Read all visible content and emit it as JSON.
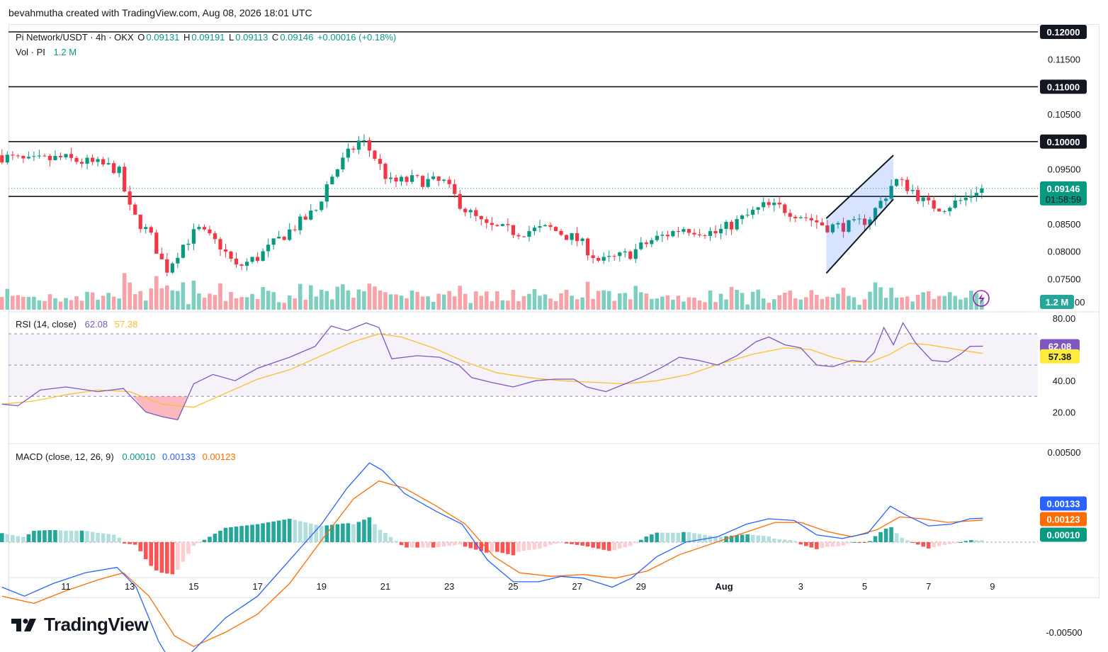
{
  "header": {
    "caption": "bevahmutha created with TradingView.com, Aug 08, 2026 18:01 UTC"
  },
  "legend": {
    "symbol": "Pi Network/USDT · 4h · OKX",
    "o_label": "O",
    "o_value": "0.09131",
    "h_label": "H",
    "h_value": "0.09191",
    "l_label": "L",
    "l_value": "0.09113",
    "c_label": "C",
    "c_value": "0.09146",
    "change": "+0.00016 (+0.18%)",
    "vol_label": "Vol · PI",
    "vol_value": "1.2 M"
  },
  "rsi_legend": {
    "label": "RSI (14, close)",
    "rsi": "62.08",
    "ma": "57.38"
  },
  "macd_legend": {
    "label": "MACD (close, 12, 26, 9)",
    "hist": "0.00010",
    "macd": "0.00133",
    "signal": "0.00123"
  },
  "brand": {
    "name": "TradingView"
  },
  "colors": {
    "up": "#089981",
    "down": "#f23645",
    "vol_up": "#7fcfc0",
    "vol_down": "#f7a1a8",
    "rsi": "#7e57c2",
    "rsi_ma": "#fbc02d",
    "macd": "#2962ff",
    "signal": "#ff6d00",
    "channel": "#2962ff"
  },
  "chart_data": [
    {
      "type": "candlestick",
      "title": "Pi Network/USDT · 4h · OKX",
      "ylim": [
        0.0715,
        0.1225
      ],
      "y_ticks": [
        "0.12000",
        "0.11500",
        "0.11000",
        "0.10500",
        "0.10000",
        "0.09500",
        "0.09146",
        "0.09000",
        "0.08500",
        "0.08000",
        "0.07500"
      ],
      "x_ticks": [
        "11",
        "13",
        "15",
        "17",
        "19",
        "21",
        "23",
        "25",
        "27",
        "29",
        "Aug",
        "3",
        "5",
        "7",
        "9"
      ],
      "last_price": "0.09146",
      "countdown": "01:58:59",
      "volume_badge": "1.2 M",
      "horizontal_levels": [
        "0.12000",
        "0.11000",
        "0.10000",
        "0.09000"
      ],
      "ohlc_last": {
        "open": 0.09131,
        "high": 0.09191,
        "low": 0.09113,
        "close": 0.09146
      },
      "path_keypoints": [
        {
          "day": 9.0,
          "price": 0.0975
        },
        {
          "day": 10.0,
          "price": 0.0963
        },
        {
          "day": 11.0,
          "price": 0.097
        },
        {
          "day": 12.3,
          "price": 0.0957
        },
        {
          "day": 12.8,
          "price": 0.095
        },
        {
          "day": 13.2,
          "price": 0.087
        },
        {
          "day": 13.8,
          "price": 0.083
        },
        {
          "day": 14.3,
          "price": 0.0765
        },
        {
          "day": 14.8,
          "price": 0.081
        },
        {
          "day": 15.3,
          "price": 0.084
        },
        {
          "day": 16.0,
          "price": 0.081
        },
        {
          "day": 16.5,
          "price": 0.077
        },
        {
          "day": 17.2,
          "price": 0.079
        },
        {
          "day": 18.0,
          "price": 0.083
        },
        {
          "day": 19.0,
          "price": 0.0875
        },
        {
          "day": 19.4,
          "price": 0.093
        },
        {
          "day": 19.9,
          "price": 0.097
        },
        {
          "day": 20.4,
          "price": 0.1005
        },
        {
          "day": 20.8,
          "price": 0.0975
        },
        {
          "day": 21.3,
          "price": 0.0925
        },
        {
          "day": 22.0,
          "price": 0.093
        },
        {
          "day": 23.0,
          "price": 0.0925
        },
        {
          "day": 23.6,
          "price": 0.088
        },
        {
          "day": 24.3,
          "price": 0.0845
        },
        {
          "day": 25.3,
          "price": 0.0835
        },
        {
          "day": 26.3,
          "price": 0.0842
        },
        {
          "day": 27.2,
          "price": 0.082
        },
        {
          "day": 27.9,
          "price": 0.078
        },
        {
          "day": 28.8,
          "price": 0.0795
        },
        {
          "day": 29.5,
          "price": 0.082
        },
        {
          "day": 30.5,
          "price": 0.0843
        },
        {
          "day": 31.5,
          "price": 0.0833
        },
        {
          "day": 32.3,
          "price": 0.0858
        },
        {
          "day": 33.0,
          "price": 0.0882
        },
        {
          "day": 33.5,
          "price": 0.088
        },
        {
          "day": 34.3,
          "price": 0.0863
        },
        {
          "day": 35.0,
          "price": 0.0845
        },
        {
          "day": 35.8,
          "price": 0.0847
        },
        {
          "day": 36.3,
          "price": 0.086
        },
        {
          "day": 36.8,
          "price": 0.09
        },
        {
          "day": 37.1,
          "price": 0.093
        },
        {
          "day": 37.6,
          "price": 0.0915
        },
        {
          "day": 38.1,
          "price": 0.0885
        },
        {
          "day": 38.6,
          "price": 0.088
        },
        {
          "day": 39.3,
          "price": 0.0895
        },
        {
          "day": 39.7,
          "price": 0.0914
        }
      ],
      "channel": {
        "upper": [
          {
            "day": 34.8,
            "price": 0.086
          },
          {
            "day": 36.9,
            "price": 0.0975
          }
        ],
        "lower": [
          {
            "day": 34.8,
            "price": 0.076
          },
          {
            "day": 36.9,
            "price": 0.0895
          }
        ]
      }
    },
    {
      "type": "line",
      "title": "RSI (14, close)",
      "ylim": [
        10,
        90
      ],
      "y_ticks": [
        "80.00",
        "40.00",
        "20.00"
      ],
      "bands": [
        70,
        50,
        30
      ],
      "series": [
        {
          "name": "RSI",
          "last": 62.08,
          "points": [
            [
              9.0,
              25
            ],
            [
              9.5,
              24
            ],
            [
              10.2,
              34
            ],
            [
              11.0,
              36
            ],
            [
              12.0,
              33
            ],
            [
              12.8,
              35
            ],
            [
              13.5,
              20
            ],
            [
              14.0,
              17
            ],
            [
              14.5,
              15
            ],
            [
              15.0,
              38
            ],
            [
              15.6,
              44
            ],
            [
              16.3,
              40
            ],
            [
              17.0,
              48
            ],
            [
              18.0,
              55
            ],
            [
              18.8,
              62
            ],
            [
              19.3,
              75
            ],
            [
              19.8,
              72
            ],
            [
              20.4,
              77
            ],
            [
              20.8,
              74
            ],
            [
              21.2,
              54
            ],
            [
              22.0,
              56
            ],
            [
              22.7,
              55
            ],
            [
              23.3,
              50
            ],
            [
              23.7,
              42
            ],
            [
              24.3,
              39
            ],
            [
              25.0,
              36
            ],
            [
              25.7,
              40
            ],
            [
              26.3,
              41
            ],
            [
              26.9,
              41
            ],
            [
              27.3,
              36
            ],
            [
              27.9,
              33
            ],
            [
              28.5,
              38
            ],
            [
              29.0,
              42
            ],
            [
              29.6,
              48
            ],
            [
              30.2,
              55
            ],
            [
              30.8,
              53
            ],
            [
              31.4,
              50
            ],
            [
              32.0,
              56
            ],
            [
              32.6,
              65
            ],
            [
              33.0,
              68
            ],
            [
              33.5,
              63
            ],
            [
              34.0,
              61
            ],
            [
              34.5,
              50
            ],
            [
              35.0,
              49
            ],
            [
              35.6,
              53
            ],
            [
              36.0,
              52
            ],
            [
              36.3,
              58
            ],
            [
              36.6,
              74
            ],
            [
              36.9,
              63
            ],
            [
              37.2,
              77
            ],
            [
              37.6,
              64
            ],
            [
              38.1,
              53
            ],
            [
              38.6,
              52
            ],
            [
              39.0,
              57
            ],
            [
              39.3,
              62
            ],
            [
              39.7,
              62.08
            ]
          ]
        },
        {
          "name": "RSI-based MA",
          "last": 57.38,
          "points": [
            [
              9.0,
              25
            ],
            [
              10.0,
              27
            ],
            [
              11.0,
              31
            ],
            [
              12.0,
              34
            ],
            [
              13.0,
              33
            ],
            [
              14.0,
              25
            ],
            [
              15.0,
              23
            ],
            [
              16.0,
              32
            ],
            [
              17.0,
              41
            ],
            [
              18.0,
              47
            ],
            [
              19.0,
              56
            ],
            [
              20.0,
              65
            ],
            [
              20.8,
              70
            ],
            [
              21.5,
              68
            ],
            [
              22.5,
              61
            ],
            [
              23.5,
              52
            ],
            [
              24.5,
              45
            ],
            [
              25.5,
              42
            ],
            [
              26.5,
              40
            ],
            [
              27.5,
              39
            ],
            [
              28.5,
              38
            ],
            [
              29.5,
              40
            ],
            [
              30.5,
              44
            ],
            [
              31.5,
              51
            ],
            [
              32.5,
              57
            ],
            [
              33.5,
              61
            ],
            [
              34.3,
              60
            ],
            [
              35.0,
              55
            ],
            [
              35.6,
              52
            ],
            [
              36.2,
              52
            ],
            [
              36.8,
              57
            ],
            [
              37.4,
              64
            ],
            [
              38.0,
              63
            ],
            [
              38.6,
              61
            ],
            [
              39.2,
              59
            ],
            [
              39.7,
              57.38
            ]
          ]
        }
      ]
    },
    {
      "type": "line",
      "title": "MACD (close, 12, 26, 9)",
      "ylim": [
        -0.0076,
        0.0058
      ],
      "y_ticks": [
        "0.00500",
        "-0.00500"
      ],
      "series": [
        {
          "name": "MACD",
          "last": 0.00133,
          "points": [
            [
              9.0,
              -0.0025
            ],
            [
              9.7,
              -0.003
            ],
            [
              10.6,
              -0.0023
            ],
            [
              11.6,
              -0.0017
            ],
            [
              12.6,
              -0.0014
            ],
            [
              13.2,
              -0.0025
            ],
            [
              13.9,
              -0.0055
            ],
            [
              14.4,
              -0.007
            ],
            [
              15.0,
              -0.006
            ],
            [
              16.0,
              -0.0042
            ],
            [
              17.0,
              -0.003
            ],
            [
              18.0,
              -0.001
            ],
            [
              19.0,
              0.001
            ],
            [
              19.8,
              0.003
            ],
            [
              20.5,
              0.0044
            ],
            [
              20.9,
              0.004
            ],
            [
              21.6,
              0.0027
            ],
            [
              22.6,
              0.0017
            ],
            [
              23.4,
              0.001
            ],
            [
              24.2,
              -0.001
            ],
            [
              25.0,
              -0.0022
            ],
            [
              25.8,
              -0.0022
            ],
            [
              26.5,
              -0.0019
            ],
            [
              27.2,
              -0.002
            ],
            [
              28.1,
              -0.0025
            ],
            [
              28.7,
              -0.002
            ],
            [
              29.5,
              -0.0008
            ],
            [
              30.4,
              0.0
            ],
            [
              31.4,
              0.0003
            ],
            [
              32.3,
              0.001
            ],
            [
              33.0,
              0.0013
            ],
            [
              33.8,
              0.0012
            ],
            [
              34.5,
              0.0004
            ],
            [
              35.3,
              0.0002
            ],
            [
              36.1,
              0.0005
            ],
            [
              36.8,
              0.002
            ],
            [
              37.3,
              0.0015
            ],
            [
              38.0,
              0.0009
            ],
            [
              38.7,
              0.001
            ],
            [
              39.3,
              0.0013
            ],
            [
              39.7,
              0.00133
            ]
          ]
        },
        {
          "name": "Signal",
          "last": 0.00123,
          "points": [
            [
              9.0,
              -0.003
            ],
            [
              10.0,
              -0.0034
            ],
            [
              11.0,
              -0.0027
            ],
            [
              12.0,
              -0.0021
            ],
            [
              12.8,
              -0.0017
            ],
            [
              13.6,
              -0.003
            ],
            [
              14.4,
              -0.0052
            ],
            [
              15.0,
              -0.0058
            ],
            [
              16.0,
              -0.005
            ],
            [
              17.0,
              -0.004
            ],
            [
              18.0,
              -0.0023
            ],
            [
              19.0,
              0.0001
            ],
            [
              20.0,
              0.0024
            ],
            [
              20.8,
              0.0034
            ],
            [
              21.6,
              0.003
            ],
            [
              22.6,
              0.002
            ],
            [
              23.5,
              0.001
            ],
            [
              24.4,
              -0.0008
            ],
            [
              25.2,
              -0.0017
            ],
            [
              26.2,
              -0.0019
            ],
            [
              27.2,
              -0.0018
            ],
            [
              28.2,
              -0.002
            ],
            [
              29.2,
              -0.0016
            ],
            [
              30.2,
              -0.0007
            ],
            [
              31.2,
              -0.0001
            ],
            [
              32.2,
              0.0005
            ],
            [
              33.2,
              0.0011
            ],
            [
              34.0,
              0.0011
            ],
            [
              34.8,
              0.0006
            ],
            [
              35.6,
              0.0003
            ],
            [
              36.4,
              0.0007
            ],
            [
              37.1,
              0.0014
            ],
            [
              37.8,
              0.0013
            ],
            [
              38.6,
              0.0011
            ],
            [
              39.7,
              0.00123
            ]
          ]
        }
      ],
      "histogram_last": 0.0001
    }
  ]
}
